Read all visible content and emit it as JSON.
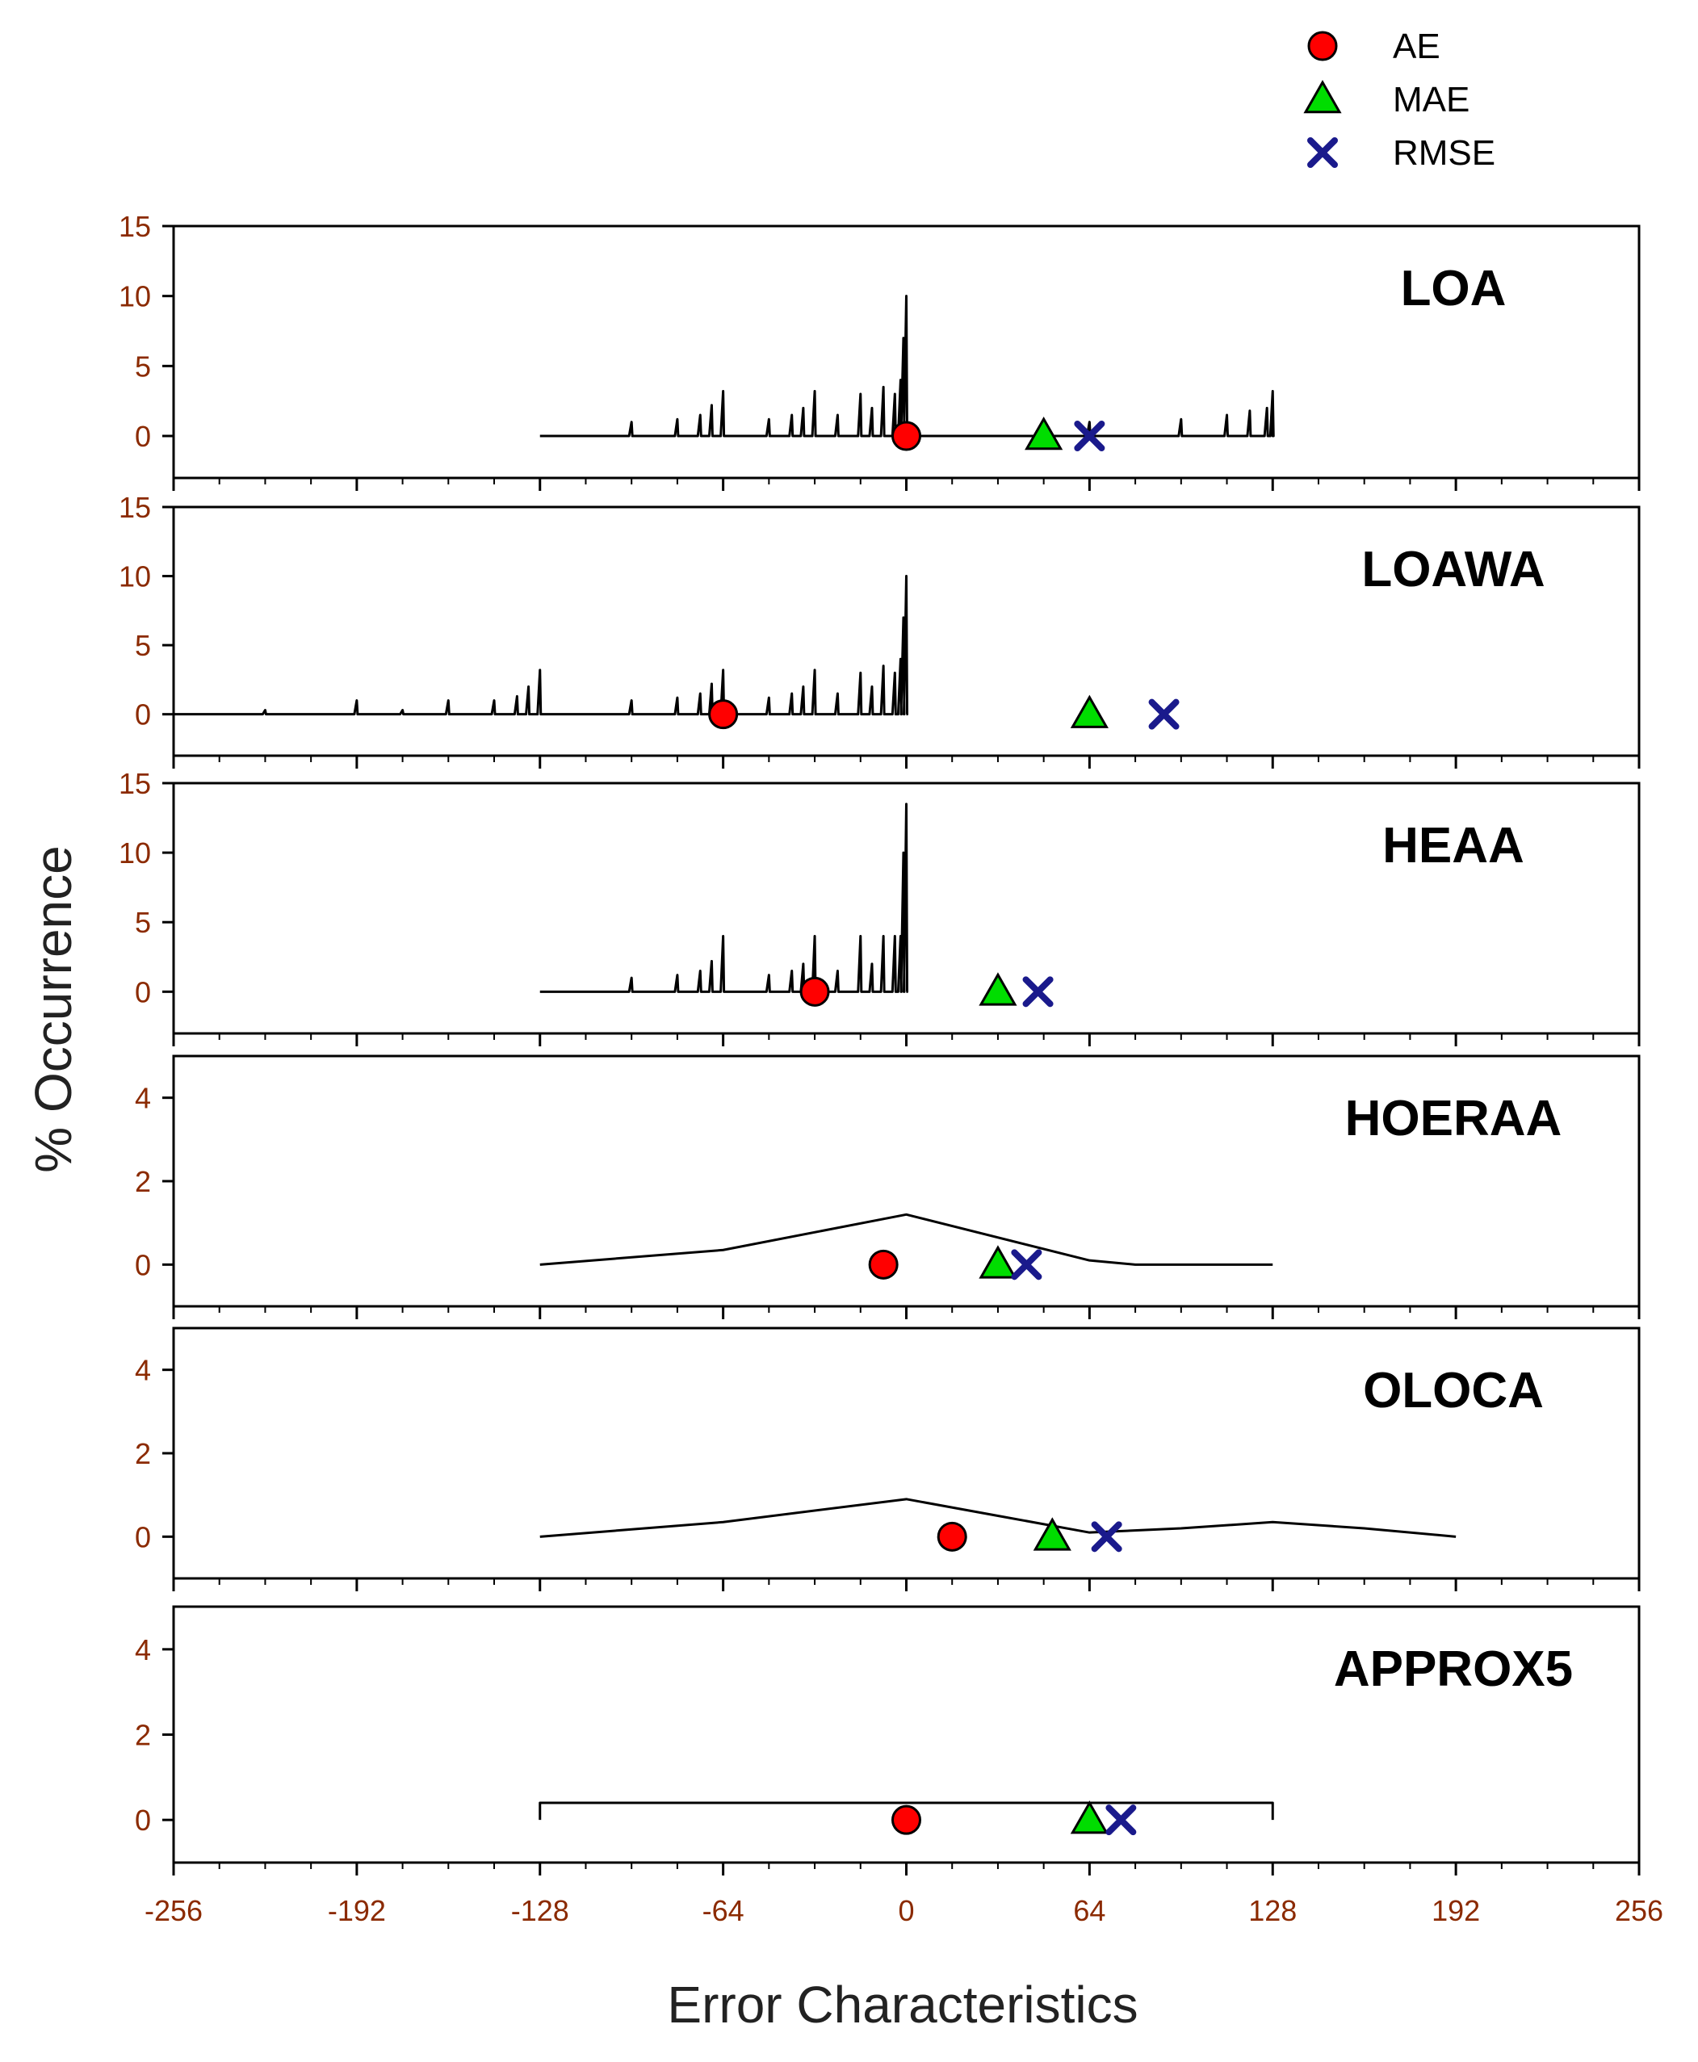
{
  "chart_data": {
    "type": "line",
    "xlabel": "Error Characteristics",
    "ylabel": "% Occurrence",
    "xlim": [
      -256,
      256
    ],
    "xticks": [
      -256,
      -192,
      -128,
      -64,
      0,
      64,
      128,
      192,
      256
    ],
    "legend": {
      "placement": "top-right",
      "entries": [
        {
          "name": "AE",
          "marker": "circle",
          "color": "#ff0000"
        },
        {
          "name": "MAE",
          "marker": "triangle",
          "color": "#00dd00"
        },
        {
          "name": "RMSE",
          "marker": "x",
          "color": "#1a1a8c"
        }
      ]
    },
    "colors": {
      "tick_label": "#8b2a00",
      "axis_title": "#8b2a00",
      "line": "#000000"
    },
    "panels": [
      {
        "title": "LOA",
        "ylim": [
          -3,
          15
        ],
        "yticks": [
          0,
          5,
          10,
          15
        ],
        "curve": {
          "baseline_range": [
            -128,
            128
          ],
          "spikes": [
            [
              -96,
              1
            ],
            [
              -80,
              1.2
            ],
            [
              -72,
              1.5
            ],
            [
              -68,
              2.2
            ],
            [
              -64,
              3.2
            ],
            [
              -48,
              1.2
            ],
            [
              -40,
              1.5
            ],
            [
              -36,
              2
            ],
            [
              -32,
              3.2
            ],
            [
              -24,
              1.5
            ],
            [
              -16,
              3
            ],
            [
              -12,
              2
            ],
            [
              -8,
              3.5
            ],
            [
              -4,
              3
            ],
            [
              -2,
              4
            ],
            [
              -1,
              7
            ],
            [
              0,
              10
            ],
            [
              64,
              1
            ],
            [
              96,
              1.2
            ],
            [
              112,
              1.5
            ],
            [
              120,
              1.8
            ],
            [
              126,
              2
            ],
            [
              128,
              3.2
            ]
          ]
        },
        "markers": {
          "AE": 0,
          "MAE": 48,
          "RMSE": 64
        }
      },
      {
        "title": "LOAWA",
        "ylim": [
          -3,
          15
        ],
        "yticks": [
          0,
          5,
          10,
          15
        ],
        "curve": {
          "baseline_range": [
            -256,
            0
          ],
          "spikes": [
            [
              -224,
              0.3
            ],
            [
              -192,
              1
            ],
            [
              -176,
              0.3
            ],
            [
              -160,
              1
            ],
            [
              -144,
              1
            ],
            [
              -136,
              1.3
            ],
            [
              -132,
              2
            ],
            [
              -128,
              3.2
            ],
            [
              -96,
              1
            ],
            [
              -80,
              1.2
            ],
            [
              -72,
              1.5
            ],
            [
              -68,
              2.2
            ],
            [
              -64,
              3.2
            ],
            [
              -48,
              1.2
            ],
            [
              -40,
              1.5
            ],
            [
              -36,
              2
            ],
            [
              -32,
              3.2
            ],
            [
              -24,
              1.5
            ],
            [
              -16,
              3
            ],
            [
              -12,
              2
            ],
            [
              -8,
              3.5
            ],
            [
              -4,
              3
            ],
            [
              -2,
              4
            ],
            [
              -1,
              7
            ],
            [
              0,
              10
            ]
          ]
        },
        "markers": {
          "AE": -64,
          "MAE": 64,
          "RMSE": 90
        }
      },
      {
        "title": "HEAA",
        "ylim": [
          -3,
          15
        ],
        "yticks": [
          0,
          5,
          10,
          15
        ],
        "curve": {
          "baseline_range": [
            -128,
            0
          ],
          "spikes": [
            [
              -96,
              1
            ],
            [
              -80,
              1.2
            ],
            [
              -72,
              1.5
            ],
            [
              -68,
              2.2
            ],
            [
              -64,
              4
            ],
            [
              -48,
              1.2
            ],
            [
              -40,
              1.5
            ],
            [
              -36,
              2
            ],
            [
              -32,
              4
            ],
            [
              -24,
              1.5
            ],
            [
              -16,
              4
            ],
            [
              -12,
              2
            ],
            [
              -8,
              4
            ],
            [
              -4,
              4
            ],
            [
              -2,
              4
            ],
            [
              -1,
              10
            ],
            [
              0,
              13.5
            ]
          ]
        },
        "markers": {
          "AE": -32,
          "MAE": 32,
          "RMSE": 46
        }
      },
      {
        "title": "HOERAA",
        "ylim": [
          -1,
          5
        ],
        "yticks": [
          0,
          2,
          4
        ],
        "curve": {
          "points": [
            [
              -128,
              0
            ],
            [
              -64,
              0.35
            ],
            [
              0,
              1.2
            ],
            [
              64,
              0.1
            ],
            [
              80,
              0
            ],
            [
              128,
              0
            ]
          ]
        },
        "markers": {
          "AE": -8,
          "MAE": 32,
          "RMSE": 42
        }
      },
      {
        "title": "OLOCA",
        "ylim": [
          -1,
          5
        ],
        "yticks": [
          0,
          2,
          4
        ],
        "curve": {
          "points": [
            [
              -128,
              0
            ],
            [
              -64,
              0.35
            ],
            [
              0,
              0.9
            ],
            [
              32,
              0.5
            ],
            [
              64,
              0.1
            ],
            [
              96,
              0.2
            ],
            [
              128,
              0.35
            ],
            [
              160,
              0.2
            ],
            [
              192,
              0
            ]
          ]
        },
        "markers": {
          "AE": 16,
          "MAE": 51,
          "RMSE": 70
        }
      },
      {
        "title": "APPROX5",
        "ylim": [
          -1,
          5
        ],
        "yticks": [
          0,
          2,
          4
        ],
        "curve": {
          "points": [
            [
              -128,
              0
            ],
            [
              -128,
              0.4
            ],
            [
              128,
              0.4
            ],
            [
              128,
              0
            ]
          ]
        },
        "markers": {
          "AE": 0,
          "MAE": 64,
          "RMSE": 75
        }
      }
    ]
  }
}
